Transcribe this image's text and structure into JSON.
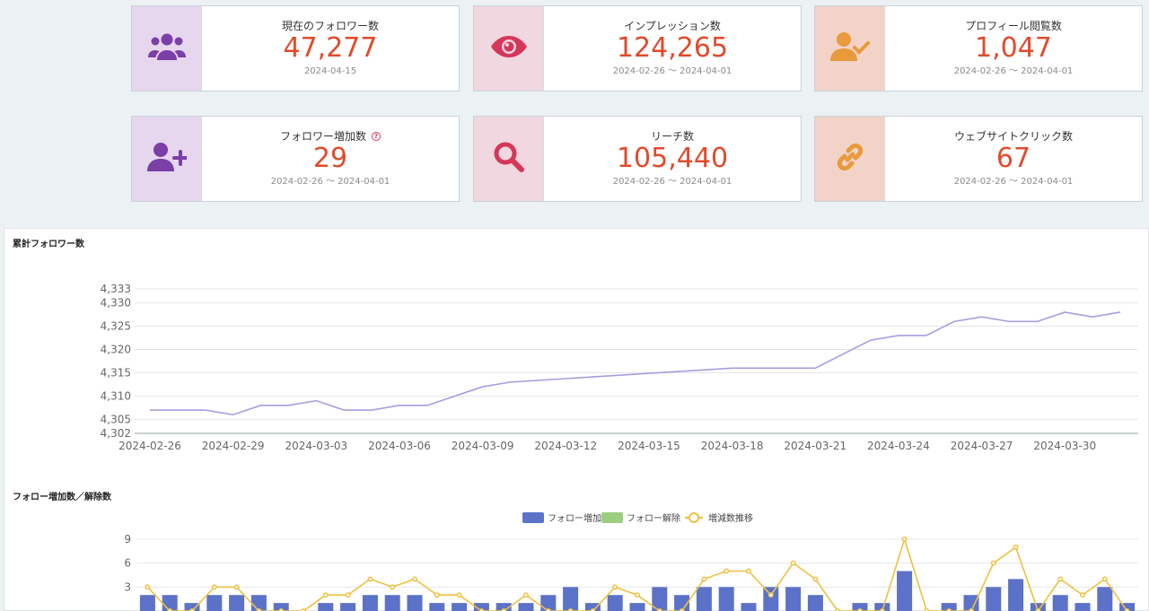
{
  "cards": [
    {
      "label": "現在のフォロワー数",
      "value": "47,277",
      "date": "2024-04-15",
      "icon": "users-group-icon",
      "help": ""
    },
    {
      "label": "インプレッション数",
      "value": "124,265",
      "date": "2024-02-26 〜 2024-04-01",
      "icon": "eye-icon",
      "help": ""
    },
    {
      "label": "プロフィール閲覧数",
      "value": "1,047",
      "date": "2024-02-26 〜 2024-04-01",
      "icon": "user-check-icon",
      "help": ""
    },
    {
      "label": "フォロワー増加数",
      "value": "29",
      "date": "2024-02-26 〜 2024-04-01",
      "icon": "user-plus-icon",
      "help": "?"
    },
    {
      "label": "リーチ数",
      "value": "105,440",
      "date": "2024-02-26 〜 2024-04-01",
      "icon": "search-icon",
      "help": ""
    },
    {
      "label": "ウェブサイトクリック数",
      "value": "67",
      "date": "2024-02-26 〜 2024-04-01",
      "icon": "link-icon",
      "help": ""
    }
  ],
  "colors": {
    "value": "#e24a2b",
    "line": "#a59ee0",
    "bar_increase": "#5b72c8",
    "bar_decrease": "#9ccd80",
    "trend": "#f0c040",
    "icon_purple": "#7b3fa8",
    "icon_pink": "#d5375a",
    "icon_orange": "#e89a3c"
  },
  "sections": {
    "cumulative_title": "累計フォロワー数",
    "follow_title": "フォロー増加数／解除数"
  },
  "chart_data": [
    {
      "type": "line",
      "title": "累計フォロワー数",
      "x_tick_labels": [
        "2024-02-26",
        "2024-02-29",
        "2024-03-03",
        "2024-03-06",
        "2024-03-09",
        "2024-03-12",
        "2024-03-15",
        "2024-03-18",
        "2024-03-21",
        "2024-03-24",
        "2024-03-27",
        "2024-03-30"
      ],
      "y_tick_labels": [
        "4,333",
        "4,330",
        "4,325",
        "4,320",
        "4,315",
        "4,310",
        "4,305",
        "4,302"
      ],
      "ylim": [
        4302,
        4333
      ],
      "x": [
        "2024-02-26",
        "2024-02-27",
        "2024-02-28",
        "2024-02-29",
        "2024-03-01",
        "2024-03-02",
        "2024-03-03",
        "2024-03-04",
        "2024-03-05",
        "2024-03-06",
        "2024-03-07",
        "2024-03-08",
        "2024-03-09",
        "2024-03-10",
        "2024-03-18",
        "2024-03-19",
        "2024-03-20",
        "2024-03-21",
        "2024-03-22",
        "2024-03-23",
        "2024-03-24",
        "2024-03-25",
        "2024-03-26",
        "2024-03-27",
        "2024-03-28",
        "2024-03-29",
        "2024-03-30",
        "2024-03-31",
        "2024-04-01"
      ],
      "y": [
        4307,
        4307,
        4307,
        4306,
        4308,
        4308,
        4309,
        4307,
        4307,
        4308,
        4308,
        4310,
        4312,
        4313,
        4316,
        4316,
        4316,
        4316,
        4319,
        4322,
        4323,
        4323,
        4326,
        4327,
        4326,
        4326,
        4328,
        4327,
        4328
      ],
      "grid": true
    },
    {
      "type": "bar",
      "title": "フォロー増加数／解除数",
      "legend": [
        "フォロー増加",
        "フォロー解除",
        "増減数推移"
      ],
      "legend_position": "top-center",
      "y_tick_labels": [
        "9",
        "6",
        "3"
      ],
      "ylim": [
        0,
        10
      ],
      "series": [
        {
          "name": "フォロー増加",
          "values": [
            2,
            2,
            1,
            2,
            2,
            2,
            1,
            0,
            1,
            1,
            2,
            2,
            2,
            1,
            1,
            1,
            1,
            1,
            2,
            3,
            1,
            2,
            1,
            3,
            2,
            3,
            3,
            1,
            3,
            3,
            2,
            0,
            1,
            1,
            5,
            0,
            1,
            2,
            3,
            4,
            1,
            2,
            1,
            3,
            1
          ]
        },
        {
          "name": "フォロー解除",
          "values": [
            0,
            0,
            0,
            0,
            0,
            0,
            0,
            0,
            0,
            0,
            0,
            0,
            0,
            0,
            0,
            0,
            0,
            0,
            0,
            0,
            0,
            0,
            0,
            0,
            0,
            0,
            0,
            0,
            0,
            0,
            0,
            0,
            0,
            0,
            0,
            0,
            0,
            0,
            0,
            0,
            0,
            0,
            0,
            0,
            0
          ]
        },
        {
          "name": "増減数推移",
          "values": [
            3,
            0,
            0,
            3,
            3,
            0,
            0,
            0,
            2,
            2,
            4,
            3,
            4,
            2,
            2,
            0,
            0,
            2,
            0,
            0,
            0,
            3,
            2,
            0,
            0,
            4,
            5,
            5,
            2,
            6,
            4,
            0,
            0,
            0,
            9,
            0,
            0,
            0,
            6,
            8,
            0,
            4,
            2,
            4,
            0
          ]
        }
      ],
      "grid": true
    }
  ]
}
